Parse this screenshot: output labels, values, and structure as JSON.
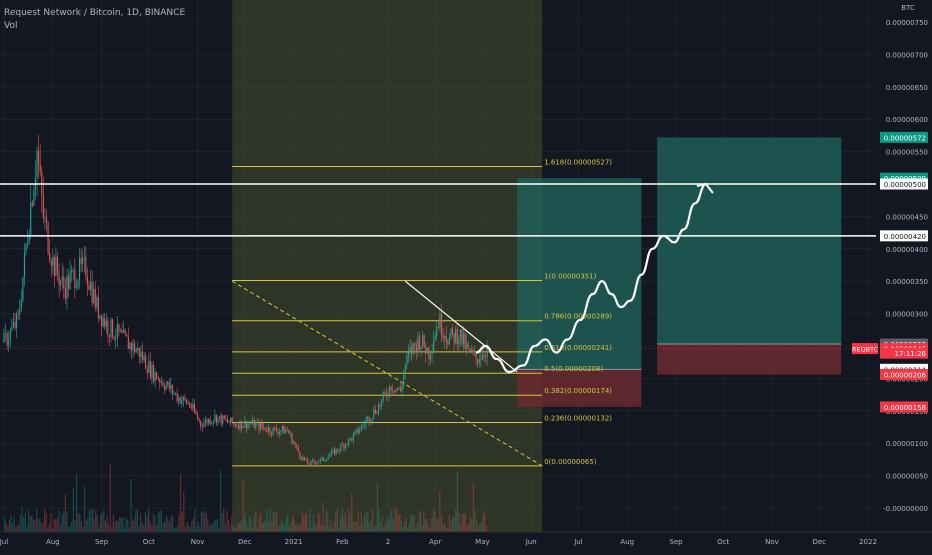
{
  "header": {
    "title": "Request Network / Bitcoin, 1D, BINANCE",
    "vol_label": "Vol"
  },
  "colors": {
    "background": "#131722",
    "candle_up": "#26a69a",
    "candle_down": "#ef5350",
    "fib_line": "#d4c640",
    "fib_zone": "#4f5a2e",
    "target_zone": "#1f5e57",
    "stop_zone": "#6b2a2f",
    "hline": "#ffffff",
    "tag_green": "#089981",
    "tag_red": "#f23645",
    "tag_gray": "#5d606b"
  },
  "chart_data": {
    "type": "candlestick",
    "title": "Request Network / Bitcoin, 1D, BINANCE",
    "currency_label": "BTC",
    "ylim": [
      -5e-08,
      7.8e-07
    ],
    "y_ticks": [
      "0.00000750",
      "0.00000700",
      "0.00000650",
      "0.00000600",
      "0.00000550",
      "0.00000500",
      "0.00000450",
      "0.00000400",
      "0.00000350",
      "0.00000300",
      "0.00000250",
      "0.00000200",
      "0.00000150",
      "0.00000100",
      "0.00000050",
      "-0.00000000"
    ],
    "y_tick_values": [
      7.5e-06,
      7e-06,
      6.5e-06,
      6e-06,
      5.5e-06,
      5e-06,
      4.5e-06,
      4e-06,
      3.5e-06,
      3e-06,
      2.5e-06,
      2e-06,
      1.5e-06,
      1e-06,
      5e-07,
      0
    ],
    "x_ticks": [
      {
        "label": "Jul",
        "date": "2020-07-01"
      },
      {
        "label": "Aug",
        "date": "2020-08-01"
      },
      {
        "label": "Sep",
        "date": "2020-09-01"
      },
      {
        "label": "Oct",
        "date": "2020-10-01"
      },
      {
        "label": "Nov",
        "date": "2020-11-01"
      },
      {
        "label": "Dec",
        "date": "2020-12-01"
      },
      {
        "label": "2021",
        "date": "2021-01-01"
      },
      {
        "label": "Feb",
        "date": "2021-02-01"
      },
      {
        "label": "2",
        "date": "2021-03-02"
      },
      {
        "label": "Apr",
        "date": "2021-04-01"
      },
      {
        "label": "May",
        "date": "2021-05-01"
      },
      {
        "label": "Jun",
        "date": "2021-06-01"
      },
      {
        "label": "Jul",
        "date": "2021-07-01"
      },
      {
        "label": "Aug",
        "date": "2021-08-01"
      },
      {
        "label": "Sep",
        "date": "2021-09-01"
      },
      {
        "label": "Oct",
        "date": "2021-10-01"
      },
      {
        "label": "Nov",
        "date": "2021-11-01"
      },
      {
        "label": "Dec",
        "date": "2021-12-01"
      },
      {
        "label": "2022",
        "date": "2022-01-01"
      }
    ],
    "price_path": [
      [
        "2020-07-01",
        2.55e-06
      ],
      [
        "2020-07-10",
        2.9e-06
      ],
      [
        "2020-07-18",
        4.7e-06
      ],
      [
        "2020-07-22",
        5.5e-06
      ],
      [
        "2020-07-26",
        4.5e-06
      ],
      [
        "2020-08-01",
        3.8e-06
      ],
      [
        "2020-08-08",
        3.4e-06
      ],
      [
        "2020-08-15",
        3.6e-06
      ],
      [
        "2020-08-22",
        3.7e-06
      ],
      [
        "2020-08-29",
        3.1e-06
      ],
      [
        "2020-09-05",
        2.8e-06
      ],
      [
        "2020-09-15",
        2.6e-06
      ],
      [
        "2020-09-25",
        2.4e-06
      ],
      [
        "2020-10-03",
        2.1e-06
      ],
      [
        "2020-10-12",
        1.9e-06
      ],
      [
        "2020-10-20",
        1.7e-06
      ],
      [
        "2020-10-27",
        1.6e-06
      ],
      [
        "2020-11-03",
        1.3e-06
      ],
      [
        "2020-11-12",
        1.4e-06
      ],
      [
        "2020-11-24",
        1.3e-06
      ],
      [
        "2020-12-05",
        1.3e-06
      ],
      [
        "2020-12-18",
        1.2e-06
      ],
      [
        "2020-12-28",
        1.2e-06
      ],
      [
        "2021-01-05",
        8.2e-07
      ],
      [
        "2021-01-10",
        6.8e-07
      ],
      [
        "2021-01-20",
        7.5e-07
      ],
      [
        "2021-01-30",
        9.2e-07
      ],
      [
        "2021-02-08",
        1.1e-06
      ],
      [
        "2021-02-18",
        1.4e-06
      ],
      [
        "2021-02-25",
        1.6e-06
      ],
      [
        "2021-03-04",
        1.9e-06
      ],
      [
        "2021-03-10",
        1.8e-06
      ],
      [
        "2021-03-13",
        2.2e-06
      ],
      [
        "2021-03-16",
        2.4e-06
      ],
      [
        "2021-03-22",
        2.6e-06
      ],
      [
        "2021-03-28",
        2.4e-06
      ],
      [
        "2021-04-03",
        2.9e-06
      ],
      [
        "2021-04-10",
        2.6e-06
      ],
      [
        "2021-04-16",
        2.7e-06
      ],
      [
        "2021-04-22",
        2.4e-06
      ],
      [
        "2021-04-27",
        2.3e-06
      ],
      [
        "2021-05-01",
        2.4e-06
      ],
      [
        "2021-05-04",
        2.46e-06
      ]
    ],
    "volume_label": "Vol",
    "fib_retracement": {
      "start_date": "2020-11-23",
      "end_date": "2021-06-08",
      "levels": [
        {
          "label": "1.618(0.00000527)",
          "value": 5.27e-06
        },
        {
          "label": "1(0.00000351)",
          "value": 3.51e-06
        },
        {
          "label": "0.786(0.00000289)",
          "value": 2.89e-06
        },
        {
          "label": "0.618(0.00000241)",
          "value": 2.41e-06
        },
        {
          "label": "0.5(0.00000208)",
          "value": 2.08e-06
        },
        {
          "label": "0.382(0.00000174)",
          "value": 1.74e-06
        },
        {
          "label": "0.236(0.00000132)",
          "value": 1.32e-06
        },
        {
          "label": "0(0.00000065)",
          "value": 6.5e-07
        }
      ]
    },
    "fib_time_zone": {
      "start": "2020-11-23",
      "end": "2021-06-08"
    },
    "descending_trendline": {
      "from": [
        "2021-03-13",
        3.5e-06
      ],
      "to": [
        "2021-05-23",
        2.1e-06
      ]
    },
    "dashed_trendline": {
      "from": [
        "2020-11-23",
        3.5e-06
      ],
      "to": [
        "2021-06-08",
        6.5e-07
      ]
    },
    "horizontal_lines": [
      5e-06,
      4.2e-06
    ],
    "positions": [
      {
        "start": "2021-05-23",
        "end": "2021-08-10",
        "entry": 2.14e-06,
        "target": 5.09e-06,
        "stop": 1.56e-06
      },
      {
        "start": "2021-08-20",
        "end": "2021-12-15",
        "entry": 2.53e-06,
        "target": 5.72e-06,
        "stop": 2.06e-06
      }
    ],
    "projected_path": [
      [
        "2021-04-27",
        2.4e-06
      ],
      [
        "2021-05-03",
        2.5e-06
      ],
      [
        "2021-05-10",
        2.3e-06
      ],
      [
        "2021-05-18",
        2.1e-06
      ],
      [
        "2021-05-27",
        2.2e-06
      ],
      [
        "2021-06-03",
        2.5e-06
      ],
      [
        "2021-06-10",
        2.6e-06
      ],
      [
        "2021-06-17",
        2.4e-06
      ],
      [
        "2021-06-24",
        2.6e-06
      ],
      [
        "2021-07-02",
        2.9e-06
      ],
      [
        "2021-07-10",
        3.3e-06
      ],
      [
        "2021-07-16",
        3.5e-06
      ],
      [
        "2021-07-22",
        3.3e-06
      ],
      [
        "2021-07-28",
        3.1e-06
      ],
      [
        "2021-08-03",
        3.2e-06
      ],
      [
        "2021-08-10",
        3.6e-06
      ],
      [
        "2021-08-17",
        4e-06
      ],
      [
        "2021-08-24",
        4.2e-06
      ],
      [
        "2021-08-31",
        4.1e-06
      ],
      [
        "2021-09-06",
        4.3e-06
      ],
      [
        "2021-09-13",
        4.7e-06
      ],
      [
        "2021-09-20",
        5e-06
      ]
    ],
    "price_tags": [
      {
        "text": "0.00000572",
        "value": 5.72e-06,
        "kind": "green"
      },
      {
        "text": "0.00000509",
        "value": 5.09e-06,
        "kind": "green"
      },
      {
        "text": "0.00000500",
        "value": 5e-06,
        "kind": "white"
      },
      {
        "text": "0.00000420",
        "value": 4.2e-06,
        "kind": "white"
      },
      {
        "text": "0.00000253",
        "value": 2.53e-06,
        "kind": "gray"
      },
      {
        "text": "0.00000246",
        "value": 2.46e-06,
        "kind": "red"
      },
      {
        "text": "17:11:26",
        "value": 2.39e-06,
        "kind": "red"
      },
      {
        "text": "0.00000214",
        "value": 2.14e-06,
        "kind": "white"
      },
      {
        "text": "0.00000206",
        "value": 2.06e-06,
        "kind": "red"
      },
      {
        "text": "0.00000156",
        "value": 1.56e-06,
        "kind": "red"
      }
    ],
    "symbol_label": "REQBTC",
    "current_price": 2.46e-06
  }
}
